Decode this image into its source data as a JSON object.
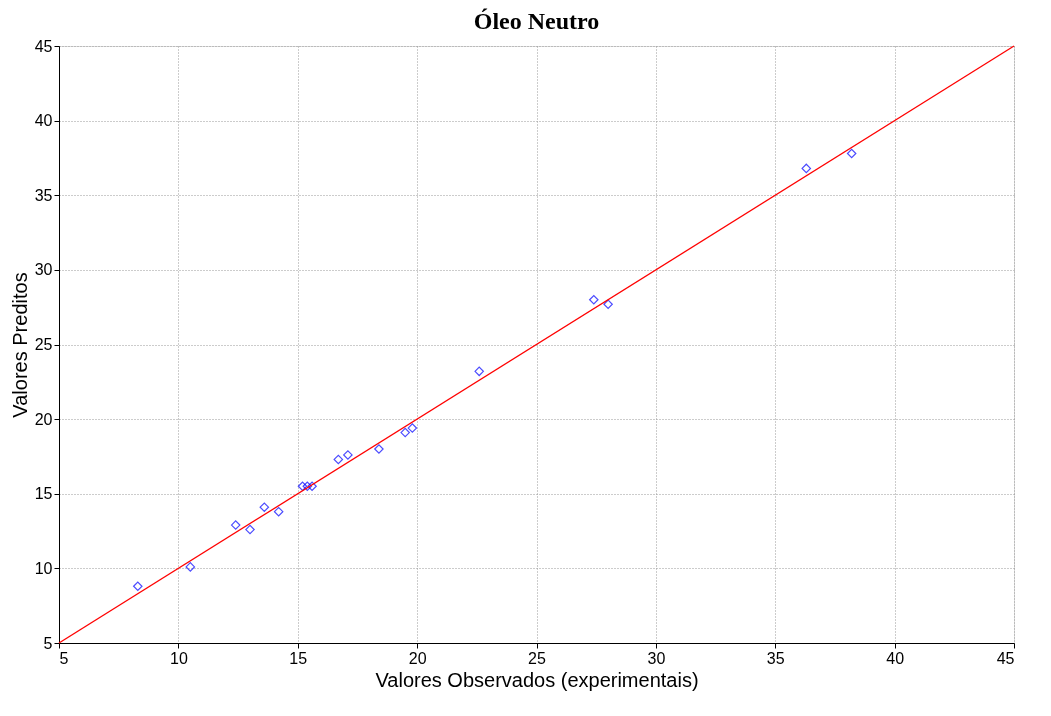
{
  "chart_data": {
    "type": "scatter",
    "title": "Óleo Neutro",
    "xlabel": "Valores Observados (experimentais)",
    "ylabel": "Valores Preditos",
    "xlim": [
      5,
      45
    ],
    "ylim": [
      5,
      45
    ],
    "xticks": [
      5,
      10,
      15,
      20,
      25,
      30,
      35,
      40,
      45
    ],
    "yticks": [
      5,
      10,
      15,
      20,
      25,
      30,
      35,
      40,
      45
    ],
    "grid": true,
    "marker": "diamond",
    "series": [
      {
        "color": "#0000ff",
        "x": [
          8.3,
          10.5,
          12.4,
          13.0,
          13.6,
          14.2,
          15.2,
          15.4,
          15.6,
          16.7,
          17.1,
          18.4,
          19.5,
          19.8,
          22.6,
          27.4,
          28.0,
          36.3,
          38.2
        ],
        "values": [
          8.8,
          10.1,
          12.9,
          12.6,
          14.1,
          13.8,
          15.5,
          15.5,
          15.5,
          17.3,
          17.6,
          18.0,
          19.1,
          19.4,
          23.2,
          28.0,
          27.7,
          36.8,
          37.8
        ]
      },
      {
        "type": "line",
        "color": "#ff0000",
        "marker": "none",
        "line_style": "solid",
        "x": [
          5,
          45
        ],
        "values": [
          5,
          45
        ]
      }
    ]
  }
}
